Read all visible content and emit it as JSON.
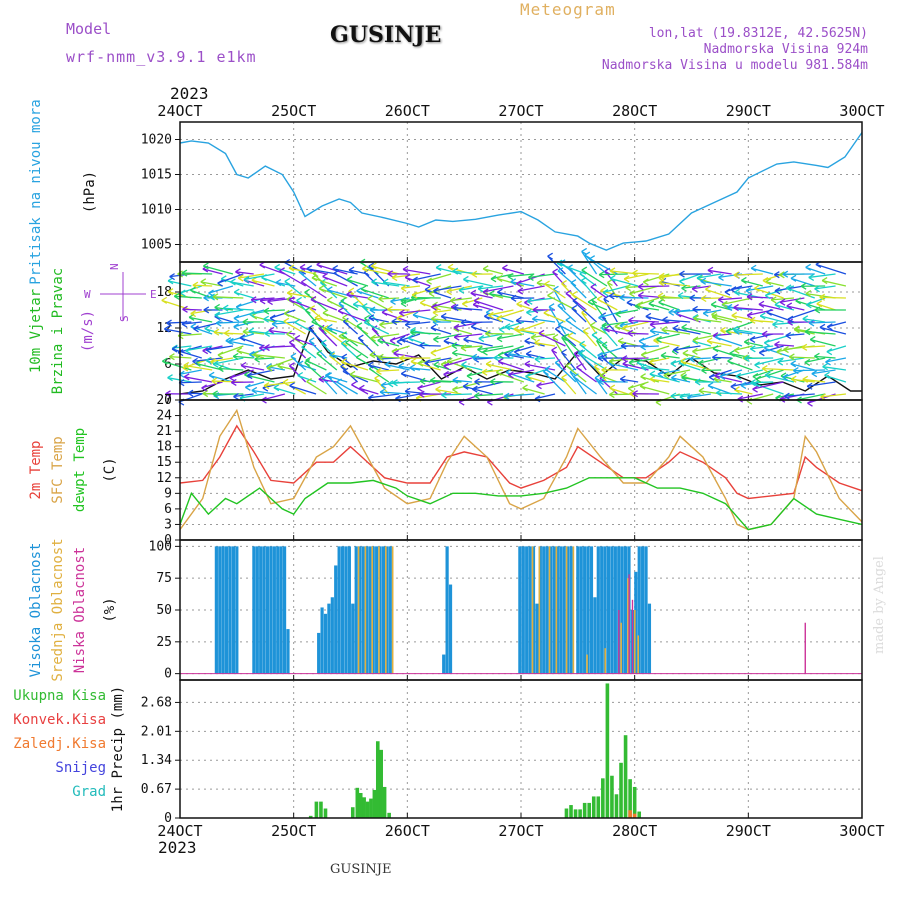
{
  "header": {
    "model_label": "Model",
    "model_name": "wrf-nmm_v3.9.1 e1km",
    "title": "GUSINJE",
    "meteogram_label": "Meteogram",
    "lonlat": "lon,lat (19.8312E, 42.5625N)",
    "elevation": "Nadmorska Visina 924m",
    "model_elevation": "Nadmorska Visina u modelu 981.584m",
    "year_top": "2023",
    "year_bottom": "2023",
    "footer_station": "GUSINJE",
    "credit": "made by Angel"
  },
  "colors": {
    "pressure": "#29a3e0",
    "temp2m": "#e8413a",
    "sfc_temp": "#d9a447",
    "dewpt": "#22c422",
    "cloud_high": "#1e93d8",
    "cloud_mid": "#e0b040",
    "cloud_low": "#cc3399",
    "precip_total": "#33bb33",
    "precip_conv": "#e84040",
    "precip_frz": "#f07a30",
    "precip_snow": "#4444dd",
    "precip_grad": "#22bbbb",
    "model_label": "#9b4fc8",
    "meteogram_label": "#e0b060"
  },
  "chart_data": {
    "type": "line",
    "x_ticks": [
      "24OCT",
      "25OCT",
      "26OCT",
      "27OCT",
      "28OCT",
      "29OCT",
      "30OCT"
    ],
    "panels": [
      {
        "id": "pressure",
        "ylabel_lines": [
          "Pritisak na nivou mora",
          "(hPa)"
        ],
        "yticks": [
          "1005",
          "1010",
          "1015",
          "1020"
        ],
        "ylim": [
          1002.5,
          1022.5
        ],
        "series": [
          {
            "x": [
              0,
              0.1,
              0.25,
              0.4,
              0.5,
              0.6,
              0.75,
              0.9,
              1.0,
              1.1,
              1.25,
              1.4,
              1.5,
              1.6,
              1.8,
              2.0,
              2.1,
              2.25,
              2.4,
              2.6,
              2.8,
              3.0,
              3.15,
              3.3,
              3.5,
              3.6,
              3.75,
              3.9,
              4.1,
              4.3,
              4.5,
              4.7,
              4.9,
              5.0,
              5.25,
              5.4,
              5.6,
              5.7,
              5.85,
              6.0
            ],
            "y": [
              1019.5,
              1019.8,
              1019.5,
              1018.0,
              1015.0,
              1014.5,
              1016.2,
              1015.0,
              1012.5,
              1009.0,
              1010.5,
              1011.5,
              1011.0,
              1009.5,
              1008.8,
              1008.0,
              1007.5,
              1008.5,
              1008.3,
              1008.6,
              1009.2,
              1009.7,
              1008.5,
              1006.8,
              1006.2,
              1005.2,
              1004.2,
              1005.2,
              1005.5,
              1006.5,
              1009.5,
              1011.0,
              1012.5,
              1014.5,
              1016.5,
              1016.8,
              1016.3,
              1016.0,
              1017.5,
              1021.0
            ]
          }
        ]
      },
      {
        "id": "wind",
        "ylabel_lines": [
          "10m Vjetar",
          "Brzina i Pravac",
          "(m/s)"
        ],
        "yticks": [
          "0",
          "6",
          "12",
          "18"
        ],
        "ylim": [
          0,
          23
        ],
        "direction_legend": [
          "N",
          "W",
          "E",
          "S"
        ],
        "series": [
          {
            "name": "speed",
            "x": [
              0,
              0.2,
              0.4,
              0.6,
              0.8,
              1.0,
              1.15,
              1.3,
              1.5,
              1.7,
              1.9,
              2.1,
              2.3,
              2.5,
              2.7,
              2.9,
              3.1,
              3.3,
              3.5,
              3.7,
              3.9,
              4.1,
              4.3,
              4.5,
              4.7,
              4.9,
              5.1,
              5.3,
              5.5,
              5.7,
              5.9,
              6.0
            ],
            "y": [
              1.0,
              1.5,
              3.5,
              5.0,
              3.5,
              4.0,
              12.0,
              8.0,
              5.5,
              6.5,
              6.0,
              7.5,
              3.5,
              5.5,
              3.5,
              5.0,
              4.5,
              3.5,
              8.0,
              4.0,
              7.0,
              6.5,
              4.0,
              7.0,
              4.5,
              4.0,
              2.5,
              3.0,
              1.5,
              4.0,
              1.5,
              1.5
            ]
          }
        ]
      },
      {
        "id": "temperature",
        "ylabel_lines": [
          "2m Temp",
          "SFC Temp",
          "dewpt Temp",
          "(C)"
        ],
        "yticks": [
          "0",
          "3",
          "6",
          "9",
          "12",
          "15",
          "18",
          "21",
          "24",
          "27"
        ],
        "ylim": [
          0,
          27
        ],
        "series": [
          {
            "name": "2m Temp",
            "x": [
              0,
              0.2,
              0.35,
              0.5,
              0.65,
              0.8,
              1.0,
              1.2,
              1.35,
              1.5,
              1.6,
              1.8,
              2.0,
              2.2,
              2.35,
              2.5,
              2.7,
              2.9,
              3.0,
              3.2,
              3.4,
              3.5,
              3.7,
              3.9,
              4.1,
              4.3,
              4.4,
              4.6,
              4.8,
              4.9,
              5.0,
              5.2,
              5.4,
              5.5,
              5.6,
              5.8,
              6.0
            ],
            "y": [
              11,
              11.5,
              16,
              22,
              17,
              11.5,
              11,
              15,
              15,
              18,
              16,
              12,
              11,
              11,
              16,
              17,
              16,
              11,
              10,
              11.5,
              14,
              18,
              15,
              12,
              12,
              15,
              17,
              15,
              12,
              9,
              8,
              8.5,
              9,
              16,
              14,
              11,
              9.5
            ]
          },
          {
            "name": "SFC Temp",
            "x": [
              0,
              0.2,
              0.35,
              0.5,
              0.65,
              0.8,
              1.0,
              1.2,
              1.35,
              1.5,
              1.6,
              1.8,
              2.0,
              2.2,
              2.35,
              2.5,
              2.7,
              2.9,
              3.0,
              3.2,
              3.4,
              3.5,
              3.7,
              3.9,
              4.1,
              4.3,
              4.4,
              4.6,
              4.8,
              4.9,
              5.0,
              5.2,
              5.4,
              5.5,
              5.6,
              5.8,
              6.0
            ],
            "y": [
              2,
              8,
              20,
              25,
              14,
              7,
              8,
              16,
              18,
              22,
              18,
              10,
              7,
              8,
              15,
              20,
              16,
              7,
              6,
              8,
              16,
              21.5,
              16,
              11,
              11,
              16,
              20,
              16,
              8,
              3,
              2,
              3,
              8,
              20,
              17,
              8,
              3.5
            ]
          },
          {
            "name": "dewpt Temp",
            "x": [
              0,
              0.1,
              0.25,
              0.4,
              0.5,
              0.7,
              0.9,
              1.0,
              1.1,
              1.3,
              1.5,
              1.7,
              1.9,
              2.0,
              2.2,
              2.4,
              2.6,
              2.8,
              3.0,
              3.2,
              3.4,
              3.6,
              3.8,
              4.0,
              4.2,
              4.4,
              4.6,
              4.8,
              5.0,
              5.2,
              5.4,
              5.6,
              5.8,
              6.0
            ],
            "y": [
              3,
              9,
              5,
              8,
              7,
              10,
              6,
              5,
              8,
              11,
              11,
              11.5,
              10,
              8.5,
              7,
              9,
              9,
              8.5,
              8.5,
              9,
              10,
              12,
              12,
              12,
              10,
              10,
              9,
              7,
              2,
              3,
              8,
              5,
              4,
              3
            ]
          }
        ]
      },
      {
        "id": "clouds",
        "ylabel_lines": [
          "Visoka Oblacnost",
          "Srednja Oblacnost",
          "Niska Oblacnost",
          "(%)"
        ],
        "yticks": [
          "0",
          "25",
          "50",
          "75",
          "100"
        ],
        "ylim": [
          -5,
          105
        ],
        "high_bars": [
          [
            0.32,
            100
          ],
          [
            0.35,
            100
          ],
          [
            0.38,
            100
          ],
          [
            0.41,
            100
          ],
          [
            0.44,
            100
          ],
          [
            0.47,
            100
          ],
          [
            0.5,
            100
          ],
          [
            0.65,
            100
          ],
          [
            0.68,
            100
          ],
          [
            0.71,
            100
          ],
          [
            0.74,
            100
          ],
          [
            0.77,
            100
          ],
          [
            0.8,
            100
          ],
          [
            0.83,
            100
          ],
          [
            0.86,
            100
          ],
          [
            0.89,
            100
          ],
          [
            0.92,
            100
          ],
          [
            0.95,
            35
          ],
          [
            1.22,
            32
          ],
          [
            1.25,
            52
          ],
          [
            1.28,
            47
          ],
          [
            1.31,
            55
          ],
          [
            1.34,
            60
          ],
          [
            1.37,
            85
          ],
          [
            1.4,
            100
          ],
          [
            1.43,
            100
          ],
          [
            1.46,
            100
          ],
          [
            1.49,
            100
          ],
          [
            1.52,
            55
          ],
          [
            1.55,
            100
          ],
          [
            1.58,
            100
          ],
          [
            1.61,
            100
          ],
          [
            1.64,
            100
          ],
          [
            1.67,
            100
          ],
          [
            1.7,
            100
          ],
          [
            1.73,
            100
          ],
          [
            1.76,
            100
          ],
          [
            1.79,
            100
          ],
          [
            1.82,
            100
          ],
          [
            1.85,
            100
          ],
          [
            2.32,
            15
          ],
          [
            2.35,
            100
          ],
          [
            2.38,
            70
          ],
          [
            2.99,
            100
          ],
          [
            3.02,
            100
          ],
          [
            3.05,
            100
          ],
          [
            3.08,
            100
          ],
          [
            3.11,
            100
          ],
          [
            3.14,
            55
          ],
          [
            3.17,
            100
          ],
          [
            3.2,
            100
          ],
          [
            3.23,
            100
          ],
          [
            3.26,
            100
          ],
          [
            3.29,
            100
          ],
          [
            3.32,
            100
          ],
          [
            3.35,
            100
          ],
          [
            3.38,
            100
          ],
          [
            3.41,
            100
          ],
          [
            3.44,
            100
          ],
          [
            3.5,
            100
          ],
          [
            3.53,
            100
          ],
          [
            3.56,
            100
          ],
          [
            3.59,
            100
          ],
          [
            3.62,
            100
          ],
          [
            3.65,
            60
          ],
          [
            3.68,
            100
          ],
          [
            3.71,
            100
          ],
          [
            3.74,
            100
          ],
          [
            3.77,
            100
          ],
          [
            3.8,
            100
          ],
          [
            3.83,
            100
          ],
          [
            3.86,
            100
          ],
          [
            3.89,
            100
          ],
          [
            3.92,
            100
          ],
          [
            3.95,
            100
          ],
          [
            3.98,
            50
          ],
          [
            4.01,
            80
          ],
          [
            4.04,
            100
          ],
          [
            4.07,
            100
          ],
          [
            4.1,
            100
          ],
          [
            4.13,
            55
          ]
        ],
        "mid_bars": [
          [
            1.55,
            100
          ],
          [
            1.61,
            100
          ],
          [
            1.67,
            100
          ],
          [
            1.73,
            100
          ],
          [
            1.79,
            100
          ],
          [
            1.85,
            100
          ],
          [
            3.08,
            100
          ],
          [
            3.14,
            100
          ],
          [
            3.23,
            100
          ],
          [
            3.29,
            100
          ],
          [
            3.38,
            100
          ],
          [
            3.44,
            100
          ],
          [
            3.56,
            15
          ],
          [
            3.72,
            20
          ],
          [
            3.86,
            40
          ],
          [
            3.92,
            75
          ],
          [
            3.98,
            50
          ],
          [
            4.01,
            30
          ]
        ],
        "low_bars": [
          [
            3.86,
            50
          ],
          [
            3.95,
            78
          ],
          [
            3.98,
            58
          ],
          [
            5.5,
            40
          ]
        ]
      },
      {
        "id": "precip",
        "ylabel_lines": [
          "1hr Precip (mm)"
        ],
        "yticks": [
          "0",
          "0.67",
          "1.34",
          "2.01",
          "2.68"
        ],
        "ylim": [
          0,
          3.2
        ],
        "legend": [
          "Ukupna Kisa",
          "Konvek.Kisa",
          "Zaledj.Kisa",
          "Snijeg",
          "Grad"
        ],
        "total_bars": [
          [
            1.15,
            0.05
          ],
          [
            1.2,
            0.38
          ],
          [
            1.24,
            0.38
          ],
          [
            1.28,
            0.22
          ],
          [
            1.52,
            0.25
          ],
          [
            1.56,
            0.7
          ],
          [
            1.59,
            0.58
          ],
          [
            1.62,
            0.48
          ],
          [
            1.65,
            0.38
          ],
          [
            1.68,
            0.45
          ],
          [
            1.71,
            0.65
          ],
          [
            1.74,
            1.78
          ],
          [
            1.77,
            1.58
          ],
          [
            1.8,
            0.72
          ],
          [
            1.84,
            0.12
          ],
          [
            3.4,
            0.22
          ],
          [
            3.44,
            0.3
          ],
          [
            3.48,
            0.2
          ],
          [
            3.52,
            0.2
          ],
          [
            3.56,
            0.35
          ],
          [
            3.6,
            0.35
          ],
          [
            3.64,
            0.5
          ],
          [
            3.68,
            0.5
          ],
          [
            3.72,
            0.92
          ],
          [
            3.76,
            3.12
          ],
          [
            3.8,
            0.98
          ],
          [
            3.84,
            0.55
          ],
          [
            3.88,
            1.28
          ],
          [
            3.92,
            1.92
          ],
          [
            3.96,
            0.9
          ],
          [
            4.0,
            0.72
          ],
          [
            4.04,
            0.15
          ]
        ],
        "frz_bars": [
          [
            3.96,
            0.18
          ],
          [
            4.0,
            0.1
          ]
        ]
      }
    ]
  }
}
